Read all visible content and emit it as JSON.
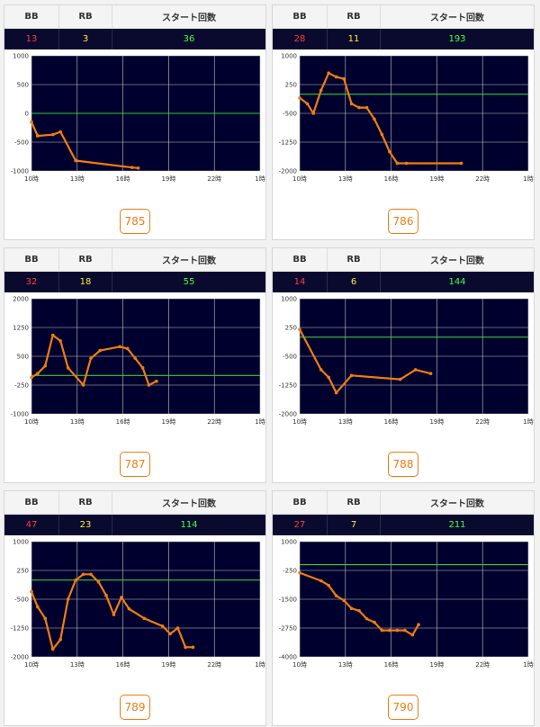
{
  "headers": {
    "bb": "BB",
    "rb": "RB",
    "start": "スタート回数"
  },
  "colors": {
    "bb": "#ff3b3b",
    "rb": "#ffee33",
    "start": "#44ff44",
    "line": "#f07c14",
    "zero_line": "#33cc33",
    "plot_bg": "#00002e",
    "grid": "#c8c8c8"
  },
  "x_ticks": [
    "10時",
    "13時",
    "16時",
    "19時",
    "22時",
    "1時"
  ],
  "cards": [
    {
      "machine": "785",
      "bb": "13",
      "rb": "3",
      "start": "36",
      "chart_data": {
        "type": "line",
        "yticks": [
          1000,
          500,
          0,
          -500,
          -1000
        ],
        "ylim": [
          -1000,
          1000
        ],
        "xlim": [
          10,
          25
        ],
        "points": [
          [
            10.0,
            -150
          ],
          [
            10.4,
            -390
          ],
          [
            11.4,
            -370
          ],
          [
            11.9,
            -320
          ],
          [
            12.9,
            -820
          ],
          [
            16.6,
            -940
          ],
          [
            17.0,
            -950
          ]
        ]
      }
    },
    {
      "machine": "786",
      "bb": "28",
      "rb": "11",
      "start": "193",
      "chart_data": {
        "type": "line",
        "yticks": [
          1000,
          250,
          -500,
          -1250,
          -2000
        ],
        "ylim": [
          -2000,
          1000
        ],
        "xlim": [
          10,
          25
        ],
        "points": [
          [
            10.0,
            -100
          ],
          [
            10.5,
            -250
          ],
          [
            10.9,
            -500
          ],
          [
            11.4,
            100
          ],
          [
            11.9,
            550
          ],
          [
            12.4,
            450
          ],
          [
            12.9,
            400
          ],
          [
            13.4,
            -250
          ],
          [
            13.9,
            -350
          ],
          [
            14.4,
            -350
          ],
          [
            14.9,
            -650
          ],
          [
            15.4,
            -1050
          ],
          [
            15.9,
            -1500
          ],
          [
            16.4,
            -1800
          ],
          [
            17.0,
            -1800
          ],
          [
            20.6,
            -1800
          ]
        ]
      }
    },
    {
      "machine": "787",
      "bb": "32",
      "rb": "18",
      "start": "55",
      "chart_data": {
        "type": "line",
        "yticks": [
          2000,
          1250,
          500,
          -250,
          -1000
        ],
        "ylim": [
          -1000,
          2000
        ],
        "xlim": [
          10,
          25
        ],
        "points": [
          [
            10.0,
            -50
          ],
          [
            10.4,
            50
          ],
          [
            10.9,
            250
          ],
          [
            11.4,
            1050
          ],
          [
            11.9,
            900
          ],
          [
            12.4,
            200
          ],
          [
            13.4,
            -250
          ],
          [
            13.9,
            450
          ],
          [
            14.5,
            650
          ],
          [
            15.8,
            750
          ],
          [
            16.3,
            700
          ],
          [
            16.8,
            450
          ],
          [
            17.3,
            200
          ],
          [
            17.7,
            -250
          ],
          [
            18.2,
            -150
          ]
        ]
      }
    },
    {
      "machine": "788",
      "bb": "14",
      "rb": "6",
      "start": "144",
      "chart_data": {
        "type": "line",
        "yticks": [
          1000,
          250,
          -500,
          -1250,
          -2000
        ],
        "ylim": [
          -2000,
          1000
        ],
        "xlim": [
          10,
          25
        ],
        "points": [
          [
            10.0,
            200
          ],
          [
            11.4,
            -850
          ],
          [
            11.9,
            -1050
          ],
          [
            12.4,
            -1450
          ],
          [
            13.4,
            -1000
          ],
          [
            16.6,
            -1100
          ],
          [
            17.6,
            -850
          ],
          [
            18.6,
            -950
          ]
        ]
      }
    },
    {
      "machine": "789",
      "bb": "47",
      "rb": "23",
      "start": "114",
      "chart_data": {
        "type": "line",
        "yticks": [
          1000,
          250,
          -500,
          -1250,
          -2000
        ],
        "ylim": [
          -2000,
          1000
        ],
        "xlim": [
          10,
          25
        ],
        "points": [
          [
            10.0,
            -300
          ],
          [
            10.4,
            -700
          ],
          [
            10.9,
            -1000
          ],
          [
            11.4,
            -1800
          ],
          [
            11.9,
            -1550
          ],
          [
            12.4,
            -500
          ],
          [
            12.9,
            0
          ],
          [
            13.4,
            150
          ],
          [
            13.9,
            150
          ],
          [
            14.4,
            -50
          ],
          [
            14.9,
            -400
          ],
          [
            15.4,
            -900
          ],
          [
            15.9,
            -450
          ],
          [
            16.4,
            -750
          ],
          [
            17.4,
            -1000
          ],
          [
            18.6,
            -1200
          ],
          [
            19.1,
            -1400
          ],
          [
            19.6,
            -1250
          ],
          [
            20.1,
            -1750
          ],
          [
            20.6,
            -1750
          ]
        ]
      }
    },
    {
      "machine": "790",
      "bb": "27",
      "rb": "7",
      "start": "211",
      "chart_data": {
        "type": "line",
        "yticks": [
          1000,
          -250,
          -1500,
          -2750,
          -4000
        ],
        "ylim": [
          -4000,
          1000
        ],
        "xlim": [
          10,
          25
        ],
        "points": [
          [
            10.0,
            -350
          ],
          [
            11.4,
            -700
          ],
          [
            11.9,
            -900
          ],
          [
            12.4,
            -1350
          ],
          [
            12.9,
            -1550
          ],
          [
            13.4,
            -1900
          ],
          [
            13.9,
            -2000
          ],
          [
            14.4,
            -2350
          ],
          [
            14.9,
            -2500
          ],
          [
            15.4,
            -2850
          ],
          [
            15.9,
            -2850
          ],
          [
            16.4,
            -2850
          ],
          [
            16.9,
            -2850
          ],
          [
            17.4,
            -3050
          ],
          [
            17.8,
            -2600
          ]
        ]
      }
    }
  ]
}
